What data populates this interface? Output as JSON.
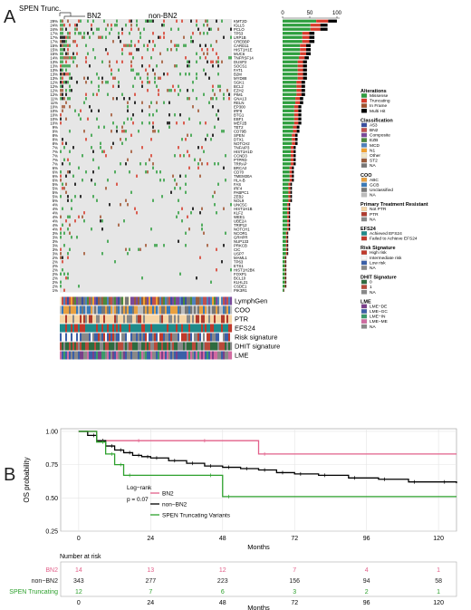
{
  "panel_a": {
    "label": "A",
    "group_labels": {
      "spen": "SPEN Trunc.",
      "bn2": "BN2",
      "non_bn2": "non-BN2"
    },
    "bar_axis_ticks": [
      "0",
      "50",
      "100"
    ],
    "genes": [
      "KMT2D",
      "IGLL5",
      "PCLO",
      "TP53",
      "LRP1B",
      "CREBBP",
      "CARD11",
      "HIST1H1E",
      "MUC6",
      "TNFRSF14",
      "DUSP2",
      "SOCS1",
      "FAT1",
      "B2M",
      "MYD88",
      "SGK1",
      "BCL2",
      "EZH2",
      "PIM1",
      "GNA13",
      "RELN",
      "EP300",
      "IRF8",
      "BTG1",
      "EBF1",
      "MEF2B",
      "TET2",
      "CD79B",
      "SPEN",
      "DTX1",
      "NOTCH2",
      "TNFAIP3",
      "HIST1H1D",
      "CCND3",
      "PTPRD",
      "TRRAP",
      "BRCA2",
      "CD70",
      "TMEM30A",
      "HLA-B",
      "FAS",
      "IRF4",
      "PABPC1",
      "ZEB2",
      "NOL9",
      "UNC5C",
      "HIST1H1B",
      "KLF2",
      "WEE1",
      "UBE2A",
      "TRIP12",
      "NOTCH1",
      "NCOR1",
      "GRHPR",
      "NUP133",
      "PRKCB",
      "CIC",
      "USP7",
      "MAML1",
      "TP63",
      "ETS1",
      "HIST1H2BK",
      "FOXP1",
      "BCL10",
      "KLHL21",
      "CSDE1",
      "PIK3R1"
    ],
    "pcts": [
      "29%",
      "24%",
      "24%",
      "17%",
      "17%",
      "17%",
      "15%",
      "15%",
      "15%",
      "14%",
      "13%",
      "13%",
      "13%",
      "13%",
      "13%",
      "12%",
      "12%",
      "12%",
      "12%",
      "11%",
      "11%",
      "10%",
      "10%",
      "10%",
      "10%",
      "10%",
      "9%",
      "9%",
      "8%",
      "8%",
      "8%",
      "7%",
      "7%",
      "7%",
      "7%",
      "7%",
      "6%",
      "6%",
      "6%",
      "6%",
      "5%",
      "5%",
      "5%",
      "5%",
      "5%",
      "4%",
      "4%",
      "4%",
      "4%",
      "4%",
      "4%",
      "4%",
      "3%",
      "3%",
      "3%",
      "3%",
      "3%",
      "3%",
      "2%",
      "2%",
      "2%",
      "2%",
      "2%",
      "2%",
      "2%",
      "2%",
      "1%"
    ],
    "track_labels": [
      "LymphGen",
      "COO",
      "PTR",
      "EFS24",
      "Risk signature",
      "DHIT signature",
      "LME"
    ],
    "legend": [
      {
        "title": "Alterations",
        "items": [
          {
            "label": "Missense",
            "color": "#2e9e3e"
          },
          {
            "label": "Truncating",
            "color": "#d83a2a"
          },
          {
            "label": "In Frame",
            "color": "#a0522d"
          },
          {
            "label": "Multi Hit",
            "color": "#000000"
          }
        ]
      },
      {
        "title": "Classification",
        "items": [
          {
            "label": "A53",
            "color": "#3a4fa0"
          },
          {
            "label": "BN2",
            "color": "#c0504d"
          },
          {
            "label": "Composite",
            "color": "#7b4a9a"
          },
          {
            "label": "EZB",
            "color": "#4a8a3c"
          },
          {
            "label": "MCD",
            "color": "#4f81bd"
          },
          {
            "label": "N1",
            "color": "#f0a030"
          },
          {
            "label": "Other",
            "color": "#f3e8c6"
          },
          {
            "label": "ST2",
            "color": "#9a5c3c"
          },
          {
            "label": "NA",
            "color": "#777777"
          }
        ]
      },
      {
        "title": "COO",
        "items": [
          {
            "label": "ABC",
            "color": "#e8a040"
          },
          {
            "label": "GCB",
            "color": "#3a7ab8"
          },
          {
            "label": "Unclassified",
            "color": "#777777"
          },
          {
            "label": "NA",
            "color": "#bdbdbd"
          }
        ]
      },
      {
        "title": "Primary Treatment Resistant",
        "items": [
          {
            "label": "Not PTR",
            "color": "#f5d5a6"
          },
          {
            "label": "PTR",
            "color": "#b03a2e"
          },
          {
            "label": "NA",
            "color": "#888888"
          }
        ]
      },
      {
        "title": "EFS24",
        "items": [
          {
            "label": "Achieved EFS24",
            "color": "#1f8a8a"
          },
          {
            "label": "Failed to Achieve EFS24",
            "color": "#c0392b"
          }
        ]
      },
      {
        "title": "Risk Signature",
        "items": [
          {
            "label": "High risk",
            "color": "#c0392b"
          },
          {
            "label": "Intermediate risk",
            "color": "#f7f7f7"
          },
          {
            "label": "Low risk",
            "color": "#3a5fa8"
          },
          {
            "label": "NA",
            "color": "#888888"
          }
        ]
      },
      {
        "title": "DHIT Signature",
        "items": [
          {
            "label": "0",
            "color": "#2e6b3f"
          },
          {
            "label": "1",
            "color": "#b84a3a"
          },
          {
            "label": "NA",
            "color": "#888888"
          }
        ]
      },
      {
        "title": "LME",
        "items": [
          {
            "label": "LME−DE",
            "color": "#7a3f8a"
          },
          {
            "label": "LME−GC",
            "color": "#3a5fa8"
          },
          {
            "label": "LME−IN",
            "color": "#3a9a6a"
          },
          {
            "label": "LME−ME",
            "color": "#d06aa0"
          },
          {
            "label": "NA",
            "color": "#888888"
          }
        ]
      }
    ]
  },
  "panel_b": {
    "label": "B",
    "chart_data": {
      "type": "line",
      "ylabel": "OS probability",
      "xlabel": "Months",
      "xlim": [
        -6,
        126
      ],
      "ylim": [
        0.25,
        1.02
      ],
      "xticks": [
        0,
        24,
        48,
        72,
        96,
        120
      ],
      "yticks": [
        0.25,
        0.5,
        0.75,
        1.0
      ],
      "ytick_labels": [
        "0.25",
        "0.50",
        "0.75",
        "1.00"
      ],
      "grid": true,
      "annotation": [
        "Log−rank",
        "p = 0.07"
      ],
      "series": [
        {
          "name": "BN2",
          "color": "#e2608a",
          "x": [
            0,
            6,
            18,
            40,
            60,
            126
          ],
          "y": [
            1.0,
            0.93,
            0.93,
            0.93,
            0.83,
            0.83
          ]
        },
        {
          "name": "non−BN2",
          "color": "#000000",
          "x": [
            0,
            3,
            6,
            9,
            12,
            15,
            18,
            21,
            24,
            30,
            36,
            42,
            48,
            54,
            60,
            66,
            72,
            80,
            90,
            100,
            110,
            120,
            126
          ],
          "y": [
            1.0,
            0.97,
            0.93,
            0.89,
            0.86,
            0.84,
            0.82,
            0.81,
            0.8,
            0.78,
            0.76,
            0.74,
            0.73,
            0.72,
            0.71,
            0.69,
            0.68,
            0.67,
            0.65,
            0.64,
            0.62,
            0.62,
            0.61
          ]
        },
        {
          "name": "SPEN Truncating Variants",
          "color": "#2ca02c",
          "x": [
            0,
            6,
            9,
            12,
            15,
            42,
            48,
            126
          ],
          "y": [
            1.0,
            0.92,
            0.83,
            0.75,
            0.67,
            0.67,
            0.51,
            0.51
          ]
        }
      ]
    },
    "risk_table": {
      "title": "Number at risk",
      "xlabel": "Months",
      "xticks": [
        0,
        24,
        48,
        72,
        96,
        120
      ],
      "rows": [
        {
          "label": "BN2",
          "color": "#e2608a",
          "values": [
            "14",
            "13",
            "12",
            "7",
            "4",
            "1"
          ]
        },
        {
          "label": "non−BN2",
          "color": "#222222",
          "values": [
            "343",
            "277",
            "223",
            "156",
            "94",
            "58"
          ]
        },
        {
          "label": "SPEN Truncating",
          "color": "#2ca02c",
          "values": [
            "12",
            "7",
            "6",
            "3",
            "2",
            "1"
          ]
        }
      ]
    }
  }
}
